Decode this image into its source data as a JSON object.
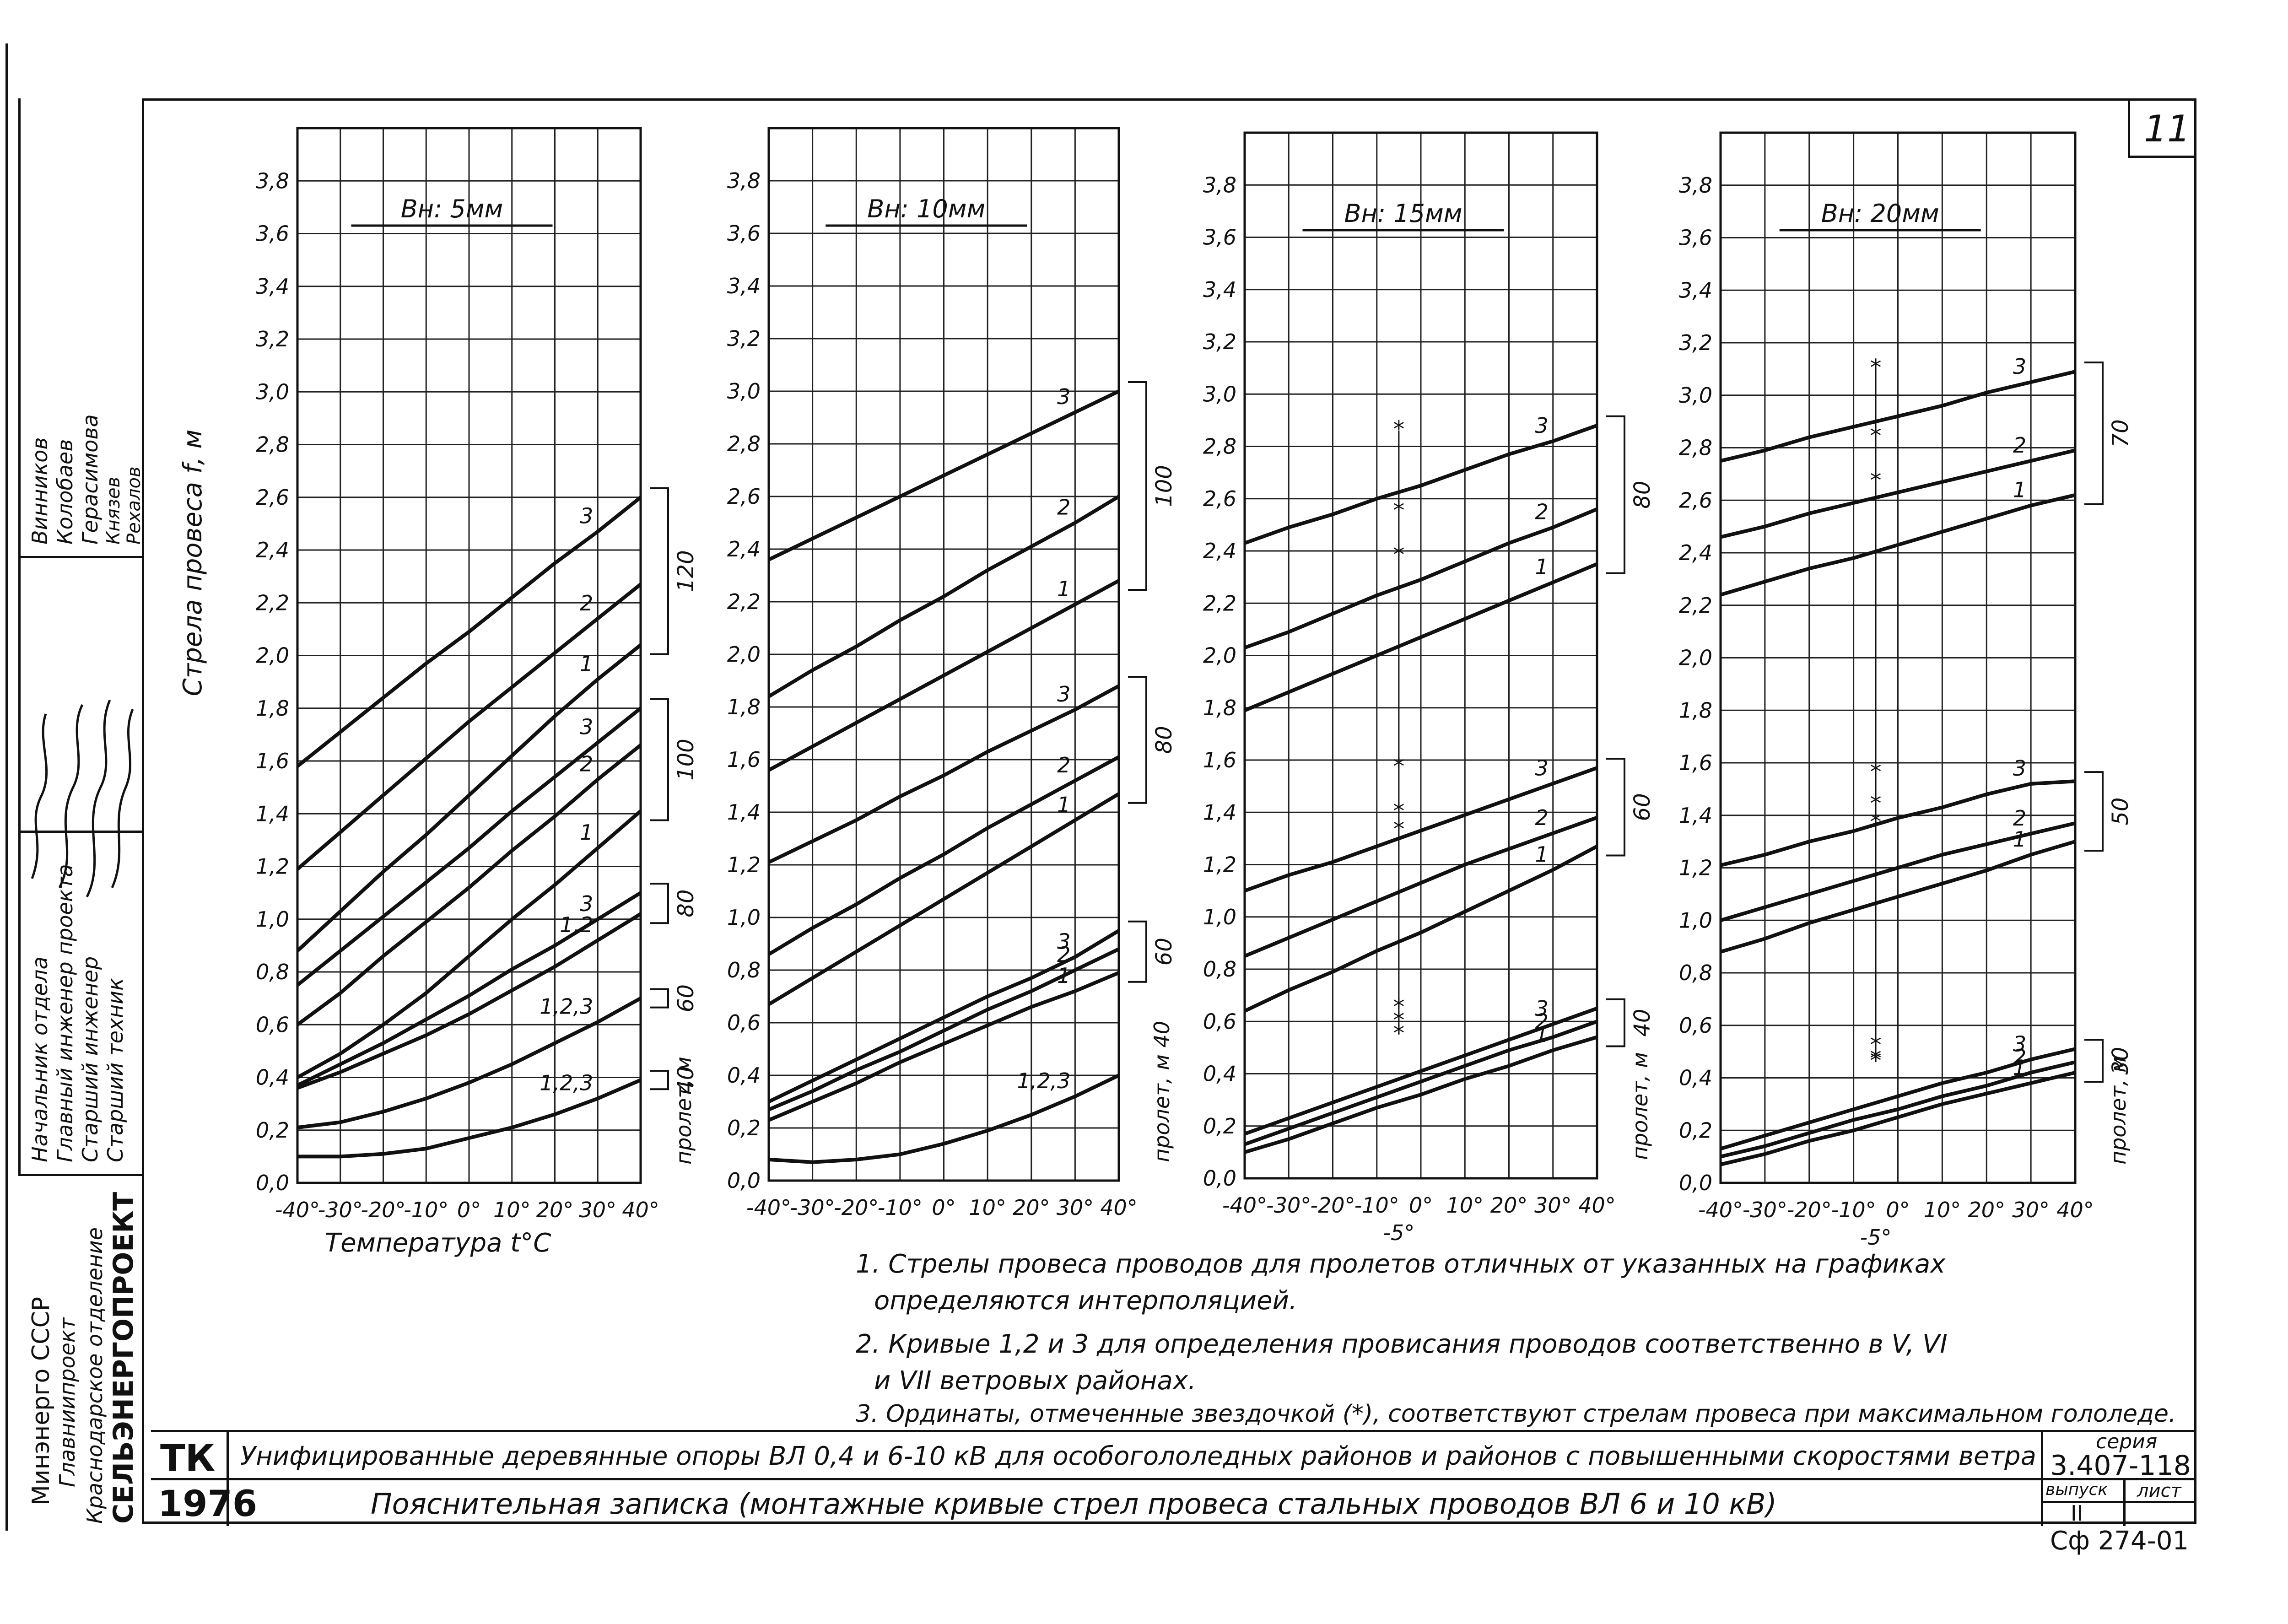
{
  "sheet_number": "11",
  "chart_data": [
    {
      "type": "line",
      "title": "Вн: 5мм",
      "ylabel": "Стрела провеса f, м",
      "xlabel": "Температура t°C",
      "span_label": "пролет, м",
      "x": [
        -40,
        -30,
        -20,
        -10,
        0,
        10,
        20,
        30,
        40
      ],
      "xticks": [
        "-40°",
        "-30°",
        "-20°",
        "-10°",
        "0°",
        "10°",
        "20°",
        "30°",
        "40°"
      ],
      "ylim": [
        0,
        4.0
      ],
      "yticks": [
        "0,0",
        "0,2",
        "0,4",
        "0,6",
        "0,8",
        "1,0",
        "1,2",
        "1,4",
        "1,6",
        "1,8",
        "2,0",
        "2,2",
        "2,4",
        "2,6",
        "2,8",
        "3,0",
        "3,2",
        "3,4",
        "3,6",
        "3,8"
      ],
      "grid": true,
      "span_groups": [
        "120",
        "100",
        "80",
        "60",
        "40"
      ],
      "series": [
        {
          "name": "3",
          "span": "120",
          "values": [
            1.58,
            1.71,
            1.84,
            1.97,
            2.09,
            2.22,
            2.35,
            2.47,
            2.6
          ]
        },
        {
          "name": "2",
          "span": "120",
          "values": [
            1.19,
            1.33,
            1.47,
            1.61,
            1.75,
            1.88,
            2.01,
            2.14,
            2.27
          ]
        },
        {
          "name": "1",
          "span": "120",
          "values": [
            0.88,
            1.03,
            1.18,
            1.32,
            1.47,
            1.62,
            1.77,
            1.91,
            2.04
          ]
        },
        {
          "name": "3",
          "span": "100",
          "values": [
            0.75,
            0.88,
            1.01,
            1.14,
            1.27,
            1.41,
            1.54,
            1.67,
            1.8
          ]
        },
        {
          "name": "2",
          "span": "100",
          "values": [
            0.6,
            0.72,
            0.86,
            0.99,
            1.12,
            1.26,
            1.39,
            1.53,
            1.66
          ]
        },
        {
          "name": "1",
          "span": "100",
          "values": [
            0.4,
            0.49,
            0.6,
            0.72,
            0.86,
            1.0,
            1.13,
            1.27,
            1.41
          ]
        },
        {
          "name": "3",
          "span": "80",
          "values": [
            0.37,
            0.45,
            0.53,
            0.62,
            0.71,
            0.81,
            0.9,
            1.0,
            1.1
          ]
        },
        {
          "name": "1,2",
          "span": "80",
          "values": [
            0.36,
            0.42,
            0.49,
            0.56,
            0.64,
            0.73,
            0.82,
            0.92,
            1.02
          ]
        },
        {
          "name": "1,2,3",
          "span": "60",
          "values": [
            0.21,
            0.23,
            0.27,
            0.32,
            0.38,
            0.45,
            0.53,
            0.61,
            0.7
          ]
        },
        {
          "name": "1,2,3",
          "span": "40",
          "values": [
            0.1,
            0.1,
            0.11,
            0.13,
            0.17,
            0.21,
            0.26,
            0.32,
            0.39
          ]
        }
      ]
    },
    {
      "type": "line",
      "title": "Вн: 10мм",
      "span_label": "пролет, м 40",
      "x": [
        -40,
        -30,
        -20,
        -10,
        0,
        10,
        20,
        30,
        40
      ],
      "xticks": [
        "-40°",
        "-30°",
        "-20°",
        "-10°",
        "0°",
        "10°",
        "20°",
        "30°",
        "40°"
      ],
      "ylim": [
        0,
        4.0
      ],
      "yticks": [
        "0,0",
        "0,2",
        "0,4",
        "0,6",
        "0,8",
        "1,0",
        "1,2",
        "1,4",
        "1,6",
        "1,8",
        "2,0",
        "2,2",
        "2,4",
        "2,6",
        "2,8",
        "3,0",
        "3,2",
        "3,4",
        "3,6",
        "3,8"
      ],
      "grid": true,
      "span_groups": [
        "100",
        "80",
        "60"
      ],
      "series": [
        {
          "name": "3",
          "span": "100",
          "values": [
            2.36,
            2.44,
            2.52,
            2.6,
            2.68,
            2.76,
            2.84,
            2.92,
            3.0
          ]
        },
        {
          "name": "2",
          "span": "100",
          "values": [
            1.84,
            1.94,
            2.03,
            2.13,
            2.22,
            2.32,
            2.41,
            2.5,
            2.6
          ]
        },
        {
          "name": "1",
          "span": "100",
          "values": [
            1.56,
            1.65,
            1.74,
            1.83,
            1.92,
            2.01,
            2.1,
            2.19,
            2.28
          ]
        },
        {
          "name": "3",
          "span": "80",
          "values": [
            1.21,
            1.29,
            1.37,
            1.46,
            1.54,
            1.63,
            1.71,
            1.79,
            1.88
          ]
        },
        {
          "name": "2",
          "span": "80",
          "values": [
            0.86,
            0.96,
            1.05,
            1.15,
            1.24,
            1.34,
            1.43,
            1.52,
            1.61
          ]
        },
        {
          "name": "1",
          "span": "80",
          "values": [
            0.67,
            0.77,
            0.87,
            0.97,
            1.07,
            1.17,
            1.27,
            1.37,
            1.47
          ]
        },
        {
          "name": "3",
          "span": "60",
          "values": [
            0.3,
            0.38,
            0.46,
            0.54,
            0.62,
            0.7,
            0.77,
            0.85,
            0.95
          ]
        },
        {
          "name": "2",
          "span": "60",
          "values": [
            0.27,
            0.34,
            0.42,
            0.49,
            0.57,
            0.65,
            0.72,
            0.8,
            0.88
          ]
        },
        {
          "name": "1",
          "span": "60",
          "values": [
            0.23,
            0.3,
            0.37,
            0.45,
            0.52,
            0.59,
            0.66,
            0.72,
            0.79
          ]
        },
        {
          "name": "1,2,3",
          "span": "40",
          "values": [
            0.08,
            0.07,
            0.08,
            0.1,
            0.14,
            0.19,
            0.25,
            0.32,
            0.4
          ]
        }
      ]
    },
    {
      "type": "line",
      "title": "Вн: 15мм",
      "span_label": "пролет, м",
      "x": [
        -40,
        -30,
        -20,
        -10,
        0,
        10,
        20,
        30,
        40
      ],
      "xticks": [
        "-40°",
        "-30°",
        "-20°",
        "-10°",
        "0°",
        "10°",
        "20°",
        "30°",
        "40°"
      ],
      "extra_tick": "-5°",
      "ylim": [
        0,
        4.0
      ],
      "yticks": [
        "0,0",
        "0,2",
        "0,4",
        "0,6",
        "0,8",
        "1,0",
        "1,2",
        "1,4",
        "1,6",
        "1,8",
        "2,0",
        "2,2",
        "2,4",
        "2,6",
        "2,8",
        "3,0",
        "3,2",
        "3,4",
        "3,6",
        "3,8"
      ],
      "grid": true,
      "span_groups": [
        "80",
        "60",
        "40"
      ],
      "series": [
        {
          "name": "3",
          "span": "80",
          "values": [
            2.43,
            2.49,
            2.54,
            2.6,
            2.65,
            2.71,
            2.77,
            2.82,
            2.88
          ]
        },
        {
          "name": "2",
          "span": "80",
          "values": [
            2.03,
            2.09,
            2.16,
            2.23,
            2.29,
            2.36,
            2.43,
            2.49,
            2.56
          ]
        },
        {
          "name": "1",
          "span": "80",
          "values": [
            1.79,
            1.86,
            1.93,
            2.0,
            2.07,
            2.14,
            2.21,
            2.28,
            2.35
          ]
        },
        {
          "name": "3",
          "span": "60",
          "values": [
            1.1,
            1.16,
            1.21,
            1.27,
            1.33,
            1.39,
            1.45,
            1.51,
            1.57
          ]
        },
        {
          "name": "2",
          "span": "60",
          "values": [
            0.85,
            0.92,
            0.99,
            1.06,
            1.13,
            1.2,
            1.26,
            1.32,
            1.38
          ]
        },
        {
          "name": "1",
          "span": "60",
          "values": [
            0.64,
            0.72,
            0.79,
            0.87,
            0.94,
            1.02,
            1.1,
            1.18,
            1.27
          ]
        },
        {
          "name": "3",
          "span": "40",
          "values": [
            0.17,
            0.23,
            0.29,
            0.35,
            0.41,
            0.47,
            0.53,
            0.59,
            0.65
          ]
        },
        {
          "name": "2",
          "span": "40",
          "values": [
            0.13,
            0.19,
            0.25,
            0.31,
            0.37,
            0.43,
            0.49,
            0.54,
            0.6
          ]
        },
        {
          "name": "1",
          "span": "40",
          "values": [
            0.1,
            0.15,
            0.21,
            0.27,
            0.32,
            0.38,
            0.43,
            0.49,
            0.54
          ]
        }
      ],
      "ice_points": {
        "x": -5,
        "values": [
          2.86,
          2.55,
          2.38,
          1.57,
          1.4,
          1.33,
          0.65,
          0.6,
          0.55
        ]
      }
    },
    {
      "type": "line",
      "title": "Вн: 20мм",
      "span_label": "пролет, м",
      "x": [
        -40,
        -30,
        -20,
        -10,
        0,
        10,
        20,
        30,
        40
      ],
      "xticks": [
        "-40°",
        "-30°",
        "-20°",
        "-10°",
        "0°",
        "10°",
        "20°",
        "30°",
        "40°"
      ],
      "extra_tick": "-5°",
      "ylim": [
        0,
        4.0
      ],
      "yticks": [
        "0,0",
        "0,2",
        "0,4",
        "0,6",
        "0,8",
        "1,0",
        "1,2",
        "1,4",
        "1,6",
        "1,8",
        "2,0",
        "2,2",
        "2,4",
        "2,6",
        "2,8",
        "3,0",
        "3,2",
        "3,4",
        "3,6",
        "3,8"
      ],
      "grid": true,
      "span_groups": [
        "70",
        "50",
        "30"
      ],
      "series": [
        {
          "name": "3",
          "span": "70",
          "values": [
            2.75,
            2.79,
            2.84,
            2.88,
            2.92,
            2.96,
            3.01,
            3.05,
            3.09
          ]
        },
        {
          "name": "2",
          "span": "70",
          "values": [
            2.46,
            2.5,
            2.55,
            2.59,
            2.63,
            2.67,
            2.71,
            2.75,
            2.79
          ]
        },
        {
          "name": "1",
          "span": "70",
          "values": [
            2.24,
            2.29,
            2.34,
            2.38,
            2.43,
            2.48,
            2.53,
            2.58,
            2.62
          ]
        },
        {
          "name": "3",
          "span": "50",
          "values": [
            1.21,
            1.25,
            1.3,
            1.34,
            1.39,
            1.43,
            1.48,
            1.52,
            1.53
          ]
        },
        {
          "name": "2",
          "span": "50",
          "values": [
            1.0,
            1.05,
            1.1,
            1.15,
            1.2,
            1.25,
            1.29,
            1.33,
            1.37
          ]
        },
        {
          "name": "1",
          "span": "50",
          "values": [
            0.88,
            0.93,
            0.99,
            1.04,
            1.09,
            1.14,
            1.19,
            1.25,
            1.3
          ]
        },
        {
          "name": "3",
          "span": "30",
          "values": [
            0.13,
            0.18,
            0.23,
            0.28,
            0.33,
            0.38,
            0.42,
            0.47,
            0.51
          ]
        },
        {
          "name": "2",
          "span": "30",
          "values": [
            0.1,
            0.14,
            0.19,
            0.24,
            0.28,
            0.33,
            0.37,
            0.42,
            0.46
          ]
        },
        {
          "name": "1",
          "span": "30",
          "values": [
            0.07,
            0.11,
            0.16,
            0.2,
            0.25,
            0.3,
            0.34,
            0.38,
            0.42
          ]
        }
      ],
      "ice_points": {
        "x": -5,
        "values": [
          3.1,
          2.84,
          2.67,
          1.56,
          1.44,
          1.37,
          0.52,
          0.47,
          0.46
        ]
      }
    }
  ],
  "notes": [
    "1. Стрелы провеса проводов для пролетов отличных от указанных на графиках",
    "определяются интерполяцией.",
    "2. Кривые 1,2 и 3 для определения провисания проводов соответственно в V, VI",
    "и VII ветровых районах.",
    "3. Ординаты, отмеченные звездочкой (*), соответствуют стрелам провеса при максимальном гололеде."
  ],
  "title_block": {
    "code_tk": "ТК",
    "year": "1976",
    "title": "Унифицированные деревянные опоры ВЛ 0,4 и 6-10 кВ для особогололедных районов и районов с повышенными скоростями ветра",
    "subtitle": "Пояснительная записка (монтажные кривые стрел провеса стальных проводов ВЛ 6 и 10 кВ)",
    "series_label": "серия",
    "series_value": "3.407-118",
    "issue_label": "выпуск",
    "issue_value": "II",
    "sheet_label": "лист",
    "doc_code": "Сф 274-01"
  },
  "side_stamp": {
    "org_lines": [
      "Минэнерго СССР",
      "Главниипроект",
      "Краснодарское отделение",
      "СЕЛЬЭНЕРГОПРОЕКТ"
    ],
    "roles": [
      "Начальник отдела",
      "Главный инженер проекта",
      "Старший инженер",
      "Старший техник"
    ],
    "names": [
      "Винников",
      "Колобаев",
      "Герасимова",
      "Князев",
      "Рехалов"
    ]
  }
}
